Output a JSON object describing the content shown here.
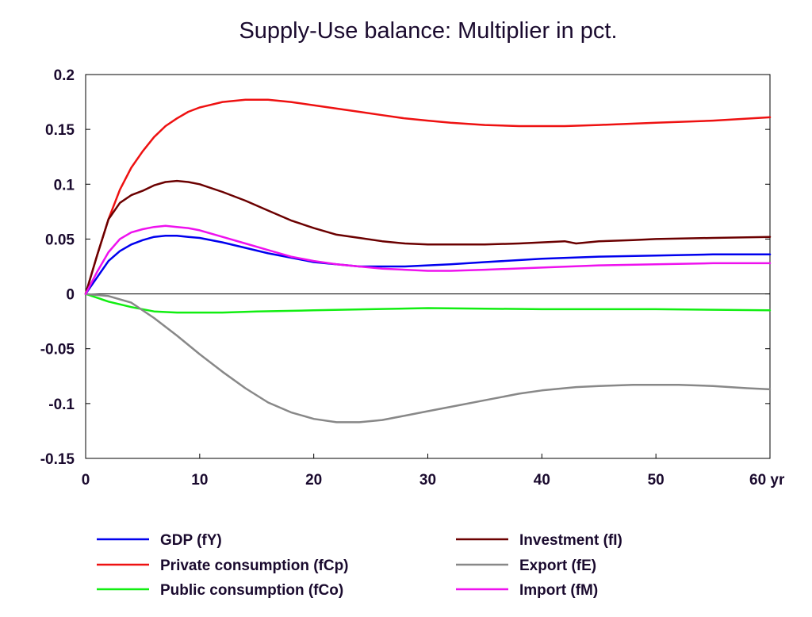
{
  "chart_data": {
    "type": "line",
    "title": "Supply-Use balance: Multiplier in pct.",
    "xlabel": "",
    "ylabel": "",
    "x_unit_label": "yr",
    "xlim": [
      0,
      60
    ],
    "ylim": [
      -0.15,
      0.2
    ],
    "x_ticks": [
      0,
      10,
      20,
      30,
      40,
      50,
      60
    ],
    "x_tick_labels": [
      "0",
      "10",
      "20",
      "30",
      "40",
      "50",
      "60 yr"
    ],
    "y_ticks": [
      0.2,
      0.15,
      0.1,
      0.05,
      0,
      -0.05,
      -0.1,
      -0.15
    ],
    "y_tick_labels": [
      "0.2",
      "0.15",
      "0.1",
      "0.05",
      "0",
      "-0.05",
      "-0.1",
      "-0.15"
    ],
    "grid": false,
    "legend_position": "bottom",
    "series": [
      {
        "name": "GDP (fY)",
        "color": "#0000ee",
        "points": [
          [
            0,
            0
          ],
          [
            1,
            0.015
          ],
          [
            2,
            0.03
          ],
          [
            3,
            0.039
          ],
          [
            4,
            0.045
          ],
          [
            5,
            0.049
          ],
          [
            6,
            0.052
          ],
          [
            7,
            0.053
          ],
          [
            8,
            0.053
          ],
          [
            9,
            0.052
          ],
          [
            10,
            0.051
          ],
          [
            12,
            0.047
          ],
          [
            14,
            0.042
          ],
          [
            16,
            0.037
          ],
          [
            18,
            0.033
          ],
          [
            20,
            0.029
          ],
          [
            22,
            0.027
          ],
          [
            24,
            0.025
          ],
          [
            26,
            0.025
          ],
          [
            28,
            0.025
          ],
          [
            30,
            0.026
          ],
          [
            32,
            0.027
          ],
          [
            35,
            0.029
          ],
          [
            40,
            0.032
          ],
          [
            45,
            0.034
          ],
          [
            50,
            0.035
          ],
          [
            55,
            0.036
          ],
          [
            60,
            0.036
          ]
        ]
      },
      {
        "name": "Private consumption (fCp)",
        "color": "#ee1111",
        "points": [
          [
            0,
            0
          ],
          [
            1,
            0.035
          ],
          [
            2,
            0.068
          ],
          [
            3,
            0.095
          ],
          [
            4,
            0.115
          ],
          [
            5,
            0.13
          ],
          [
            6,
            0.143
          ],
          [
            7,
            0.153
          ],
          [
            8,
            0.16
          ],
          [
            9,
            0.166
          ],
          [
            10,
            0.17
          ],
          [
            12,
            0.175
          ],
          [
            14,
            0.177
          ],
          [
            16,
            0.177
          ],
          [
            18,
            0.175
          ],
          [
            20,
            0.172
          ],
          [
            22,
            0.169
          ],
          [
            24,
            0.166
          ],
          [
            26,
            0.163
          ],
          [
            28,
            0.16
          ],
          [
            30,
            0.158
          ],
          [
            32,
            0.156
          ],
          [
            35,
            0.154
          ],
          [
            38,
            0.153
          ],
          [
            40,
            0.153
          ],
          [
            42,
            0.153
          ],
          [
            45,
            0.154
          ],
          [
            50,
            0.156
          ],
          [
            55,
            0.158
          ],
          [
            60,
            0.161
          ]
        ]
      },
      {
        "name": "Public consumption (fCo)",
        "color": "#11ee11",
        "points": [
          [
            0,
            0
          ],
          [
            2,
            -0.007
          ],
          [
            4,
            -0.012
          ],
          [
            6,
            -0.016
          ],
          [
            8,
            -0.017
          ],
          [
            10,
            -0.017
          ],
          [
            12,
            -0.017
          ],
          [
            15,
            -0.016
          ],
          [
            20,
            -0.015
          ],
          [
            25,
            -0.014
          ],
          [
            30,
            -0.013
          ],
          [
            40,
            -0.014
          ],
          [
            50,
            -0.014
          ],
          [
            60,
            -0.015
          ]
        ]
      },
      {
        "name": "Investment (fI)",
        "color": "#6b0000",
        "points": [
          [
            0,
            0
          ],
          [
            1,
            0.035
          ],
          [
            2,
            0.068
          ],
          [
            3,
            0.083
          ],
          [
            4,
            0.09
          ],
          [
            5,
            0.094
          ],
          [
            6,
            0.099
          ],
          [
            7,
            0.102
          ],
          [
            8,
            0.103
          ],
          [
            9,
            0.102
          ],
          [
            10,
            0.1
          ],
          [
            12,
            0.093
          ],
          [
            14,
            0.085
          ],
          [
            16,
            0.076
          ],
          [
            18,
            0.067
          ],
          [
            20,
            0.06
          ],
          [
            22,
            0.054
          ],
          [
            24,
            0.051
          ],
          [
            26,
            0.048
          ],
          [
            28,
            0.046
          ],
          [
            30,
            0.045
          ],
          [
            32,
            0.045
          ],
          [
            35,
            0.045
          ],
          [
            38,
            0.046
          ],
          [
            40,
            0.047
          ],
          [
            42,
            0.048
          ],
          [
            43,
            0.046
          ],
          [
            45,
            0.048
          ],
          [
            48,
            0.049
          ],
          [
            50,
            0.05
          ],
          [
            55,
            0.051
          ],
          [
            60,
            0.052
          ]
        ]
      },
      {
        "name": "Export (fE)",
        "color": "#888888",
        "points": [
          [
            0,
            0
          ],
          [
            2,
            -0.002
          ],
          [
            4,
            -0.008
          ],
          [
            6,
            -0.022
          ],
          [
            8,
            -0.038
          ],
          [
            10,
            -0.055
          ],
          [
            12,
            -0.071
          ],
          [
            14,
            -0.086
          ],
          [
            16,
            -0.099
          ],
          [
            18,
            -0.108
          ],
          [
            20,
            -0.114
          ],
          [
            22,
            -0.117
          ],
          [
            24,
            -0.117
          ],
          [
            26,
            -0.115
          ],
          [
            28,
            -0.111
          ],
          [
            30,
            -0.107
          ],
          [
            32,
            -0.103
          ],
          [
            35,
            -0.097
          ],
          [
            38,
            -0.091
          ],
          [
            40,
            -0.088
          ],
          [
            43,
            -0.085
          ],
          [
            45,
            -0.084
          ],
          [
            48,
            -0.083
          ],
          [
            50,
            -0.083
          ],
          [
            52,
            -0.083
          ],
          [
            55,
            -0.084
          ],
          [
            58,
            -0.086
          ],
          [
            60,
            -0.087
          ]
        ]
      },
      {
        "name": "Import (fM)",
        "color": "#ee11ee",
        "points": [
          [
            0,
            0
          ],
          [
            1,
            0.02
          ],
          [
            2,
            0.038
          ],
          [
            3,
            0.05
          ],
          [
            4,
            0.056
          ],
          [
            5,
            0.059
          ],
          [
            6,
            0.061
          ],
          [
            7,
            0.062
          ],
          [
            8,
            0.061
          ],
          [
            9,
            0.06
          ],
          [
            10,
            0.058
          ],
          [
            12,
            0.052
          ],
          [
            14,
            0.046
          ],
          [
            16,
            0.04
          ],
          [
            18,
            0.034
          ],
          [
            20,
            0.03
          ],
          [
            22,
            0.027
          ],
          [
            24,
            0.025
          ],
          [
            26,
            0.023
          ],
          [
            28,
            0.022
          ],
          [
            30,
            0.021
          ],
          [
            32,
            0.021
          ],
          [
            35,
            0.022
          ],
          [
            40,
            0.024
          ],
          [
            45,
            0.026
          ],
          [
            50,
            0.027
          ],
          [
            55,
            0.028
          ],
          [
            60,
            0.028
          ]
        ]
      }
    ]
  }
}
